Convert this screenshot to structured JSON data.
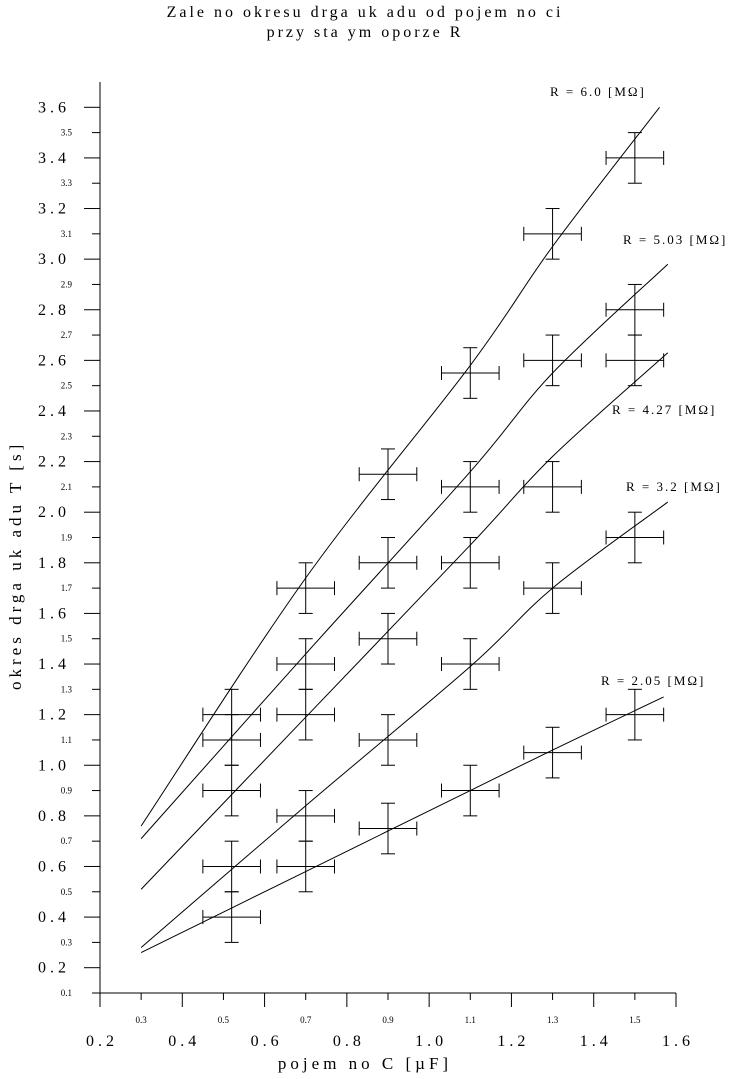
{
  "chart_data": {
    "type": "scatter",
    "title": "Zale no   okresu drga  uk adu od pojem no ci",
    "subtitle": "przy sta ym oporze R",
    "xlabel": "pojem no      C    [µF]",
    "ylabel": "okres drga   uk adu   T  [s]",
    "xlim": [
      0.2,
      1.6
    ],
    "ylim": [
      0.1,
      3.7
    ],
    "x_major_ticks": [
      "0.2",
      "0.4",
      "0.6",
      "0.8",
      "1.0",
      "1.2",
      "1.4",
      "1.6"
    ],
    "x_minor_ticks": [
      "0.3",
      "0.5",
      "0.7",
      "0.9",
      "1.1",
      "1.3",
      "1.5"
    ],
    "y_major_ticks": [
      "0.2",
      "0.4",
      "0.6",
      "0.8",
      "1.0",
      "1.2",
      "1.4",
      "1.6",
      "1.8",
      "2.0",
      "2.2",
      "2.4",
      "2.6",
      "2.8",
      "3.0",
      "3.2",
      "3.4",
      "3.6"
    ],
    "y_minor_ticks": [
      "0.1",
      "0.3",
      "0.5",
      "0.7",
      "0.9",
      "1.1",
      "1.3",
      "1.5",
      "1.7",
      "1.9",
      "2.1",
      "2.3",
      "2.5",
      "2.7",
      "2.9",
      "3.1",
      "3.3",
      "3.5"
    ],
    "x_error": 0.07,
    "y_error": 0.1,
    "series": [
      {
        "name": "R = 6.0 [MΩ]",
        "points": [
          [
            0.52,
            1.2
          ],
          [
            0.7,
            1.7
          ],
          [
            0.9,
            2.15
          ],
          [
            1.1,
            2.55
          ],
          [
            1.3,
            3.1
          ],
          [
            1.5,
            3.4
          ]
        ],
        "fit": [
          [
            0.3,
            0.76
          ],
          [
            0.7,
            1.74
          ],
          [
            1.1,
            2.58
          ],
          [
            1.3,
            3.05
          ],
          [
            1.56,
            3.6
          ]
        ]
      },
      {
        "name": "R = 5.03 [MΩ]",
        "points": [
          [
            0.52,
            1.1
          ],
          [
            0.7,
            1.4
          ],
          [
            0.9,
            1.8
          ],
          [
            1.1,
            2.1
          ],
          [
            1.3,
            2.6
          ],
          [
            1.5,
            2.8
          ]
        ],
        "fit": [
          [
            0.3,
            0.71
          ],
          [
            0.7,
            1.44
          ],
          [
            1.1,
            2.16
          ],
          [
            1.3,
            2.55
          ],
          [
            1.58,
            2.98
          ]
        ]
      },
      {
        "name": "R = 4.27 [MΩ]",
        "points": [
          [
            0.52,
            0.9
          ],
          [
            0.7,
            1.2
          ],
          [
            0.9,
            1.5
          ],
          [
            1.1,
            1.8
          ],
          [
            1.3,
            2.1
          ],
          [
            1.5,
            2.6
          ]
        ],
        "fit": [
          [
            0.3,
            0.51
          ],
          [
            0.7,
            1.19
          ],
          [
            1.1,
            1.87
          ],
          [
            1.3,
            2.22
          ],
          [
            1.58,
            2.63
          ]
        ]
      },
      {
        "name": "R = 3.2 [MΩ]",
        "points": [
          [
            0.52,
            0.6
          ],
          [
            0.7,
            0.8
          ],
          [
            0.9,
            1.1
          ],
          [
            1.1,
            1.4
          ],
          [
            1.3,
            1.7
          ],
          [
            1.5,
            1.9
          ]
        ],
        "fit": [
          [
            0.3,
            0.28
          ],
          [
            0.7,
            0.84
          ],
          [
            1.1,
            1.39
          ],
          [
            1.3,
            1.7
          ],
          [
            1.58,
            2.04
          ]
        ]
      },
      {
        "name": "R = 2.05 [MΩ]",
        "points": [
          [
            0.52,
            0.4
          ],
          [
            0.7,
            0.6
          ],
          [
            0.9,
            0.75
          ],
          [
            1.1,
            0.9
          ],
          [
            1.3,
            1.05
          ],
          [
            1.5,
            1.2
          ]
        ],
        "fit": [
          [
            0.3,
            0.26
          ],
          [
            0.7,
            0.58
          ],
          [
            1.1,
            0.9
          ],
          [
            1.3,
            1.06
          ],
          [
            1.57,
            1.27
          ]
        ]
      }
    ],
    "legend": "inline labels at line ends",
    "grid": false
  }
}
